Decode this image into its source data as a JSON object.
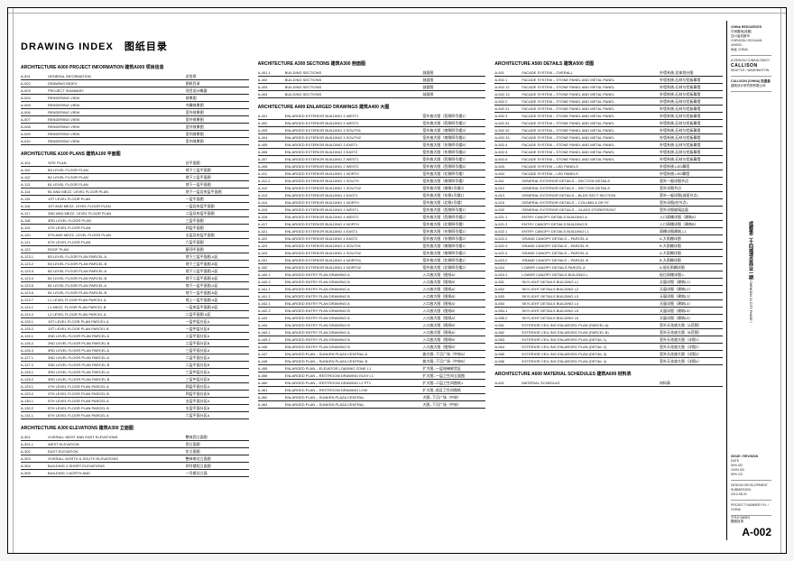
{
  "title": "DRAWING INDEX　图纸目录",
  "sheet_number": "A-002",
  "sheet_name_en": "TITLE INDEX",
  "sheet_name_cn": "图纸目录",
  "titleblock": {
    "owner1": "CHINA RESOURCES",
    "owner1_sub": "华润置地(成都)",
    "owner1_addr1": "四川省成都市",
    "owner1_addr2": "CHENGDU SICHUAN 400000",
    "owner1_addr3": "地址 CHINA",
    "firm": "CALLISON",
    "firm_sub1": "A DESIGN CONSULTANCY",
    "firm_sub2": "SEATTLE / WASHINGTON",
    "firm_sub3": "CALLISON (CHINA) 凯里森",
    "ldi_line1": "建筑设计研究院有限公司",
    "project_vert_cn": "成都第二十四城项目商业一期",
    "project_vert_en": "CHENGDU 24 CITY PHASE I",
    "rev_head": "ISSUE / REVISION",
    "rev_r1": "DATE",
    "rev_r2": "50% DD",
    "rev_r3": "100% DD",
    "rev_r4": "50% CD",
    "dev_line": "DESIGN DEVELOPMENT SUBMISSION",
    "date_line": "2012-08-31",
    "project_no": "PROJECT NUMBER  P.N. / CHINA"
  },
  "col1": {
    "sec1_head": "ARCHITECTURE A000 PROJECT INFORMATION  建筑A000 项目信息",
    "rows1": [
      {
        "n": "A-001",
        "en": "GENERAL INFORMATION",
        "cn": "总信息"
      },
      {
        "n": "A-002",
        "en": "DRAWING INDEX",
        "cn": "图纸目录"
      },
      {
        "n": "A-003",
        "en": "PROJECT SUMMARY",
        "cn": "项目设计概要"
      },
      {
        "n": "A-004",
        "en": "RENDERING VIEW",
        "cn": "效果图"
      },
      {
        "n": "A-005",
        "en": "RENDERING VIEW",
        "cn": "鸟瞰效果图"
      },
      {
        "n": "A-006",
        "en": "RENDERING VIEW",
        "cn": "室外效果图"
      },
      {
        "n": "A-007",
        "en": "RENDERING VIEW",
        "cn": "室外效果图"
      },
      {
        "n": "A-008",
        "en": "RENDERING VIEW",
        "cn": "室外效果图"
      },
      {
        "n": "A-009",
        "en": "RENDERING VIEW",
        "cn": "室内效果图"
      },
      {
        "n": "A-010",
        "en": "RENDERING VIEW",
        "cn": "室内效果图"
      }
    ],
    "sec2_head": "ARCHITECTURE A100 PLANS  建筑A100 平面图",
    "rows2": [
      {
        "n": "A-101",
        "en": "SITE PLAN",
        "cn": "总平面图"
      },
      {
        "n": "A-110",
        "en": "B3 LEVEL FLOOR PLAN",
        "cn": "地下三层平面图"
      },
      {
        "n": "A-112",
        "en": "B2 LEVEL FLOOR PLAN",
        "cn": "地下二层平面图"
      },
      {
        "n": "A-113",
        "en": "B1 LEVEL FLOOR PLAN",
        "cn": "地下一层平面图"
      },
      {
        "n": "A-114",
        "en": "B1 AND MEZZ. LEVEL FLOOR PLAN",
        "cn": "地下一层及夹层平面图"
      },
      {
        "n": "A-115",
        "en": "1ST LEVEL FLOOR PLAN",
        "cn": "一层平面图"
      },
      {
        "n": "A-116",
        "en": "1ST AND MEZZ. LEVEL FLOOR PLAN",
        "cn": "一层及夹层平面图"
      },
      {
        "n": "A-117",
        "en": "2ND AND MEZZ. LEVEL FLOOR PLAN",
        "cn": "二层及夹层平面图"
      },
      {
        "n": "A-118",
        "en": "3RD LEVEL FLOOR PLAN",
        "cn": "三层平面图"
      },
      {
        "n": "A-119",
        "en": "4TH LEVEL FLOOR PLAN",
        "cn": "四层平面图"
      },
      {
        "n": "A-120",
        "en": "5TH AND MEZZ. LEVEL FLOOR PLAN",
        "cn": "五层及夹层平面图"
      },
      {
        "n": "A-121",
        "en": "6TH LEVEL FLOOR PLAN",
        "cn": "六层平面图"
      },
      {
        "n": "A-122",
        "en": "ROOF PLAN",
        "cn": "屋顶平面图"
      },
      {
        "n": "A-123.1",
        "en": "B3 LEVEL FLOOR PLAN PARCEL A",
        "cn": "地下三层平面图-A区"
      },
      {
        "n": "A-123.2",
        "en": "B3 LEVEL FLOOR PLAN PARCEL B",
        "cn": "地下三层平面图-B区"
      },
      {
        "n": "A-123.3",
        "en": "B2 LEVEL FLOOR PLAN PARCEL A",
        "cn": "地下二层平面图-A区"
      },
      {
        "n": "A-123.4",
        "en": "B2 LEVEL FLOOR PLAN PARCEL B",
        "cn": "地下二层平面图-B区"
      },
      {
        "n": "A-123.5",
        "en": "B1 LEVEL FLOOR PLAN PARCEL A",
        "cn": "地下一层平面图-A区"
      },
      {
        "n": "A-123.6",
        "en": "B1 LEVEL FLOOR PLAN PARCEL B",
        "cn": "地下一层平面图-B区"
      },
      {
        "n": "A-123.7",
        "en": "L1 LEVEL FLOOR PLAN PARCEL A",
        "cn": "地上一层平面图-A区"
      },
      {
        "n": "A-124.1",
        "en": "L1 MEZZ. FLOOR PLAN PARCEL B",
        "cn": "一层夹层平面图-B区"
      },
      {
        "n": "A-124.2",
        "en": "L2 LEVEL FLOOR PLAN PARCEL A",
        "cn": "二层平面图-A区"
      },
      {
        "n": "A-125.1",
        "en": "1ST LEVEL FLOOR PLAN PARCEL A",
        "cn": "一层中层分区A"
      },
      {
        "n": "A-125.2",
        "en": "1ST LEVEL FLOOR PLAN PARCEL B",
        "cn": "一层中层分区B"
      },
      {
        "n": "A-126.1",
        "en": "2ND LEVEL FLOOR PLAN PARCEL A",
        "cn": "二层平面分区A"
      },
      {
        "n": "A-126.2",
        "en": "2ND LEVEL FLOOR PLAN PARCEL B",
        "cn": "二层平面分区B"
      },
      {
        "n": "A-126.3",
        "en": "3RD LEVEL FLOOR PLAN PARCEL A",
        "cn": "三层平面分区A"
      },
      {
        "n": "A-127.1",
        "en": "2ND LEVEL FLOOR PLAN PARCEL A",
        "cn": "二层平面分区A"
      },
      {
        "n": "A-127.2",
        "en": "2ND LEVEL FLOOR PLAN PARCEL B",
        "cn": "二层平面分区B"
      },
      {
        "n": "A-128.1",
        "en": "3RD LEVEL FLOOR PLAN PARCEL A",
        "cn": "三层中层分区A"
      },
      {
        "n": "A-128.2",
        "en": "3RD LEVEL FLOOR PLAN PARCEL B",
        "cn": "三层中层分区B"
      },
      {
        "n": "A-129.1",
        "en": "4TH LEVEL FLOOR PLAN PARCEL A",
        "cn": "四层平面分区A"
      },
      {
        "n": "A-129.2",
        "en": "4TH LEVEL FLOOR PLAN PARCEL B",
        "cn": "四层平面分区B"
      },
      {
        "n": "A-130.1",
        "en": "5TH LEVEL FLOOR PLAN PARCEL A",
        "cn": "五层平面分区A"
      },
      {
        "n": "A-130.2",
        "en": "5TH LEVEL FLOOR PLAN PARCEL B",
        "cn": "五层平面分区B"
      },
      {
        "n": "A-131.1",
        "en": "6TH LEVEL FLOOR PLAN PARCEL A",
        "cn": "六层平面分区A"
      }
    ],
    "sec3_head": "ARCHITECTURE A300 ELEVATIONS  建筑A300 立面图",
    "rows3": [
      {
        "n": "A-301",
        "en": "OVERALL WEST AND EAST ELEVATIONS",
        "cn": "整体西立面图"
      },
      {
        "n": "A-301.1",
        "en": "WEST ELEVATION",
        "cn": "西立面图"
      },
      {
        "n": "A-302",
        "en": "EAST ELEVATION",
        "cn": "东立面图"
      },
      {
        "n": "A-303",
        "en": "OVERALL NORTH & SOUTH ELEVATIONS",
        "cn": "整体南北立面图"
      },
      {
        "n": "A-304",
        "en": "BUILDING 4 SHORT ELEVATIONS",
        "cn": "四号楼短立面图"
      },
      {
        "n": "A-305",
        "en": "BUILDING 1 NORTH AND",
        "cn": "一号楼北立面"
      }
    ]
  },
  "col2": {
    "sec1_head": "ARCHITECTURE A300 SECTIONS  建筑A300 剖面图",
    "rows1": [
      {
        "n": "A-401.1",
        "en": "BUILDING SECTIONS",
        "cn": "剖面图"
      },
      {
        "n": "A-402",
        "en": "BUILDING SECTIONS",
        "cn": "剖面图"
      },
      {
        "n": "A-403",
        "en": "BUILDING SECTIONS",
        "cn": "剖面图"
      },
      {
        "n": "A-404",
        "en": "BUILDING SECTIONS",
        "cn": "剖面图"
      }
    ],
    "sec2_head": "ARCHITECTURE A400 ENLARGED DRAWINGS  建筑A400 大图",
    "rows2": [
      {
        "n": "A-401",
        "en": "ENLARGED EXTERIOR BUILDING 4 WEST1",
        "cn": "室外放大图（西侧四号楼1）"
      },
      {
        "n": "A-402",
        "en": "ENLARGED EXTERIOR BUILDING 4 WEST2",
        "cn": "室外放大图（西侧四号楼2）"
      },
      {
        "n": "A-403",
        "en": "ENLARGED EXTERIOR BUILDING 3 SOUTH1",
        "cn": "室外放大图（南侧四号楼3）"
      },
      {
        "n": "A-404",
        "en": "ENLARGED EXTERIOR BUILDING 3 SOUTH2",
        "cn": "室外放大图（南侧四号楼4）"
      },
      {
        "n": "A-405",
        "en": "ENLARGED EXTERIOR BUILDING 3 EAST1",
        "cn": "室外放大图（东侧四号楼5）"
      },
      {
        "n": "A-406",
        "en": "ENLARGED EXTERIOR BUILDING 3 EAST2",
        "cn": "室外放大图（东侧四号楼6）"
      },
      {
        "n": "A-407",
        "en": "ENLARGED EXTERIOR BUILDING 2 WEST1",
        "cn": "室外放大图（西侧四号楼7）"
      },
      {
        "n": "A-408",
        "en": "ENLARGED EXTERIOR BUILDING 2 WEST2",
        "cn": "室外放大图（西侧四号楼8）"
      },
      {
        "n": "A-411",
        "en": "ENLARGED EXTERIOR BUILDING 1 NORTH",
        "cn": "室外放大图（北侧四号楼）"
      },
      {
        "n": "A-411.2",
        "en": "ENLARGED EXTERIOR BUILDING 1 SOUTH",
        "cn": "室外放大图（南侧四号楼）"
      },
      {
        "n": "A-412",
        "en": "ENLARGED EXTERIOR BUILDING 1 SOUTH2",
        "cn": "室外放大图（南侧1号楼2）"
      },
      {
        "n": "A-413",
        "en": "ENLARGED EXTERIOR BUILDING 1 EAST1",
        "cn": "室外放大图（东侧1号楼1）"
      },
      {
        "n": "A-414",
        "en": "ENLARGED EXTERIOR BUILDING 1 NORTH",
        "cn": "室外放大图（北侧1号楼）"
      },
      {
        "n": "A-415",
        "en": "ENLARGED EXTERIOR BUILDING 4 WEST1",
        "cn": "室外放大图（西侧四号楼1）"
      },
      {
        "n": "A-416",
        "en": "ENLARGED EXTERIOR BUILDING 4 WEST2",
        "cn": "室外放大图（西侧四号楼2）"
      },
      {
        "n": "A-417",
        "en": "ENLARGED EXTERIOR BUILDING 4 NORTH",
        "cn": "室外放大图（北侧四号楼）"
      },
      {
        "n": "A-421",
        "en": "ENLARGED EXTERIOR BUILDING 4 EAST1",
        "cn": "室外放大图（东侧四号楼1）"
      },
      {
        "n": "A-422",
        "en": "ENLARGED EXTERIOR BUILDING 4 EAST2",
        "cn": "室外放大图（东侧四号楼2）"
      },
      {
        "n": "A-423",
        "en": "ENLARGED EXTERIOR BUILDING 4 SOUTH1",
        "cn": "室外放大图（南侧四号楼1）"
      },
      {
        "n": "A-424",
        "en": "ENLARGED EXTERIOR BUILDING 4 SOUTH2",
        "cn": "室外放大图（南侧四号楼2）"
      },
      {
        "n": "A-431",
        "en": "ENLARGED EXTERIOR BUILDING 4 NORTH1",
        "cn": "室外放大图（北侧四号楼1）"
      },
      {
        "n": "A-432",
        "en": "ENLARGED EXTERIOR BUILDING 4 NORTH2",
        "cn": "室外放大图（北侧四号楼2）"
      },
      {
        "n": "A-440.1",
        "en": "ENLARGED ENTRY PLAN DRAWING A",
        "cn": "入口放大图（图纸A）"
      },
      {
        "n": "A-440.2",
        "en": "ENLARGED ENTRY PLAN DRAWING B",
        "cn": "入口放大图（图纸B）"
      },
      {
        "n": "A-441.1",
        "en": "ENLARGED ENTRY PLAN DRAWING A",
        "cn": "入口放大图（图纸A）"
      },
      {
        "n": "A-441.2",
        "en": "ENLARGED ENTRY PLAN DRAWING B",
        "cn": "入口放大图（图纸B）"
      },
      {
        "n": "A-442.1",
        "en": "ENLARGED ENTRY PLAN DRAWING A",
        "cn": "入口放大图（图纸A）"
      },
      {
        "n": "A-442.2",
        "en": "ENLARGED ENTRY PLAN DRAWING B",
        "cn": "入口放大图（图纸B）"
      },
      {
        "n": "A-443",
        "en": "ENLARGED ENTRY PLAN DRAWING A",
        "cn": "入口放大图（图纸A）"
      },
      {
        "n": "A-444",
        "en": "ENLARGED ENTRY PLAN DRAWING B",
        "cn": "入口放大图（图纸B）"
      },
      {
        "n": "A-445.1",
        "en": "ENLARGED ENTRY PLAN DRAWING A",
        "cn": "入口放大图（图纸A）"
      },
      {
        "n": "A-445.2",
        "en": "ENLARGED ENTRY PLAN DRAWING B",
        "cn": "入口放大图（图纸B）"
      },
      {
        "n": "A-446",
        "en": "ENLARGED ENTRY PLAN DRAWING B",
        "cn": "入口放大图（图纸B）"
      },
      {
        "n": "A-447",
        "en": "ENLARGED PLAN – SUNKEN PLAZA CENTRAL A",
        "cn": "放大图--下沉广场（中央A）"
      },
      {
        "n": "A-448",
        "en": "ENLARGED PLAN – SUNKEN PLAZA CENTRAL B",
        "cn": "放大图--下沉广场（中央B）"
      },
      {
        "n": "A-455",
        "en": "ENLARGED PLAN – ELEVATOR LOADING ZONE L1",
        "cn": "扩大图--一层电梯卸货区"
      },
      {
        "n": "A-456",
        "en": "ENLARGED PLAN – RESTROOM DRAWING ELEV L1",
        "cn": "扩大图--一层卫生间立面图"
      },
      {
        "n": "A-460",
        "en": "ENLARGED PLAN – RESTROOM DRAWING L2 PT1",
        "cn": "扩大图--二层卫生间图纸1"
      },
      {
        "n": "A-461",
        "en": "ENLARGED PLAN – RESTROOM DRAWING LOW",
        "cn": "扩大图--低区卫生间图纸"
      },
      {
        "n": "A-462",
        "en": "ENLARGED PLAN – SUNKEN PLAZA CENTRAL",
        "cn": "大图--下沉广场（中央）"
      },
      {
        "n": "A-463",
        "en": "ENLARGED PLAN – SUNKEN PLAZA CENTRAL",
        "cn": "大图--下沉广场（中央）"
      }
    ]
  },
  "col3": {
    "sec1_head": "ARCHITECTURE A500 DETAILS  建筑A500 详图",
    "rows1": [
      {
        "n": "A-501",
        "en": "FACADE SYSTEM – OVERALL",
        "cn": "外墙系统-总体划分图"
      },
      {
        "n": "A-502.1",
        "en": "FACADE SYSTEM – STONE PANEL AND METAL PANEL",
        "cn": "外墙系统-石材与铝板幕墙"
      },
      {
        "n": "A-502.12",
        "en": "FACADE SYSTEM – STONE PANEL AND METAL PANEL",
        "cn": "外墙系统-石材与铝板幕墙"
      },
      {
        "n": "A-502.13",
        "en": "FACADE SYSTEM – STONE PANEL AND METAL PANEL",
        "cn": "外墙系统-石材与铝板幕墙"
      },
      {
        "n": "A-502.2",
        "en": "FACADE SYSTEM – STONE PANEL AND METAL PANEL",
        "cn": "外墙系统-石材与铝板幕墙"
      },
      {
        "n": "A-502.21",
        "en": "FACADE SYSTEM – STONE PANEL AND METAL PANEL",
        "cn": "外墙系统-石材与铝板幕墙"
      },
      {
        "n": "A-502.3",
        "en": "FACADE SYSTEM – STONE PANEL AND METAL PANEL",
        "cn": "外墙系统-石材与铝板幕墙"
      },
      {
        "n": "A-502.31",
        "en": "FACADE SYSTEM – STONE PANEL AND METAL PANEL",
        "cn": "外墙系统-石材与铝板幕墙"
      },
      {
        "n": "A-502.32",
        "en": "FACADE SYSTEM – STONE PANEL AND METAL PANEL",
        "cn": "外墙系统-石材与铝板幕墙"
      },
      {
        "n": "A-502.33",
        "en": "FACADE SYSTEM – STONE PANEL AND METAL PANEL",
        "cn": "外墙系统-石材与铝板幕墙"
      },
      {
        "n": "A-502.4",
        "en": "FACADE SYSTEM – STONE PANEL AND METAL PANEL",
        "cn": "外墙系统-石材与铝板幕墙"
      },
      {
        "n": "A-502.5",
        "en": "FACADE SYSTEM – STONE PANEL AND METAL PANEL",
        "cn": "外墙系统-石材与铝板幕墙"
      },
      {
        "n": "A-502.6",
        "en": "FACADE SYSTEM – STONE PANEL AND METAL PANEL",
        "cn": "外墙系统-石材与铝板幕墙"
      },
      {
        "n": "A-503",
        "en": "FACADE SYSTEM – LED PANELS",
        "cn": "外墙系统-LED幕墙"
      },
      {
        "n": "A-504",
        "en": "FACADE SYSTEM – LED PANELS",
        "cn": "外墙系统-LED幕墙"
      },
      {
        "n": "A-511",
        "en": "GENERAL EXTERIOR DETAILS – SECTION DETAILS",
        "cn": "室外一般详图节点"
      },
      {
        "n": "A-512",
        "en": "GENERAL EXTERIOR DETAILS – SECTION DETAILS",
        "cn": "室外详图节点"
      },
      {
        "n": "A-513",
        "en": "GENERAL EXTERIOR DETAILS – BLDG SECT SECTION",
        "cn": "室外一般详图(剖面节点)"
      },
      {
        "n": "A-515",
        "en": "GENERAL EXTERIOR DETAILS – COLUMN & DR ST.",
        "cn": "室外详图(柱节点)"
      },
      {
        "n": "A-520",
        "en": "GENERAL EXTERIOR DETAILS – GLASS STOREFRONT",
        "cn": "室外详图玻璃店面"
      },
      {
        "n": "A-521.1",
        "en": "ENTRY CANOPY DETAILS BUILDING A",
        "cn": "入口雨棚详图（建筑A）"
      },
      {
        "n": "A-521.2",
        "en": "ENTRY CANOPY DETAILS BUILDING B",
        "cn": "入口雨棚详图（建筑B）"
      },
      {
        "n": "A-522.1",
        "en": "ENTRY CANOPY DETAILS BUILDING L1",
        "cn": "雨棚详图建筑-L1"
      },
      {
        "n": "A-522.2",
        "en": "GRAND CANOPY DETAILS – PARCEL A",
        "cn": "A.大雨棚详图"
      },
      {
        "n": "A-522.3",
        "en": "GRAND CANOPY DETAILS – PARCEL B",
        "cn": "B.大雨棚详图"
      },
      {
        "n": "A-522.4",
        "en": "GRAND CANOPY DETAILS – PARCEL A",
        "cn": "A.大雨棚详图"
      },
      {
        "n": "A-523.2",
        "en": "GRAND CANOPY DETAILS – PARCEL B",
        "cn": "B.大雨棚详图"
      },
      {
        "n": "A-524",
        "en": "LOWER CANOPY DETAILS PARCEL A",
        "cn": "A.低位雨棚详图"
      },
      {
        "n": "A-524.1",
        "en": "LOWER CANOPY DETAILS BUILDING L",
        "cn": "低位雨棚详图-L"
      },
      {
        "n": "A-551",
        "en": "SKYLIGHT DETAILS BUILDING L1",
        "cn": "天窗详图（建筑L1）"
      },
      {
        "n": "A-552",
        "en": "SKYLIGHT DETAILS BUILDING L2",
        "cn": "天窗详图（建筑L2）"
      },
      {
        "n": "A-553",
        "en": "SKYLIGHT DETAILS BUILDING L3",
        "cn": "天窗详图（建筑L3）"
      },
      {
        "n": "A-554",
        "en": "SKYLIGHT DETAILS BUILDING L4",
        "cn": "天窗详图（建筑L4）"
      },
      {
        "n": "A-554.1",
        "en": "SKYLIGHT DETAILS BUILDING L5",
        "cn": "天窗详图（建筑L5）"
      },
      {
        "n": "A-555.2",
        "en": "SKYLIGHT DETAILS BUILDING L6",
        "cn": "天窗详图（建筑L6）"
      },
      {
        "n": "A-561",
        "en": "EXTERIOR CEIL ING ENLARGED PLAN (PARCEL A)",
        "cn": "室外天花放大图（A范围）"
      },
      {
        "n": "A-562",
        "en": "EXTERIOR CEIL ING ENLARGED PLAN (PARCEL B)",
        "cn": "室外天花放大图（B范围）"
      },
      {
        "n": "A-563",
        "en": "EXTERIOR CEIL ING ENLARGED PLAN (DETAIL 1)",
        "cn": "室外天花放大图（详图1）"
      },
      {
        "n": "A-564",
        "en": "EXTERIOR CEIL ING ENLARGED PLAN (DETAIL 2)",
        "cn": "室外天花放大图（详图2）"
      },
      {
        "n": "A-565",
        "en": "EXTERIOR CEIL ING ENLARGED PLAN (DETAIL 3)",
        "cn": "室外天花放大图（详图3）"
      },
      {
        "n": "A-566",
        "en": "EXTERIOR CEIL ING ENLARGED PLAN (DETAIL 4)",
        "cn": "室外天花放大图（详图4）"
      }
    ],
    "sec2_head": "ARCHITECTURE A600 MATERIAL SCHEDULES  建筑A600 材料表",
    "rows2": [
      {
        "n": "A-601",
        "en": "MATERIAL SCHEDULE",
        "cn": "材料表"
      }
    ]
  }
}
